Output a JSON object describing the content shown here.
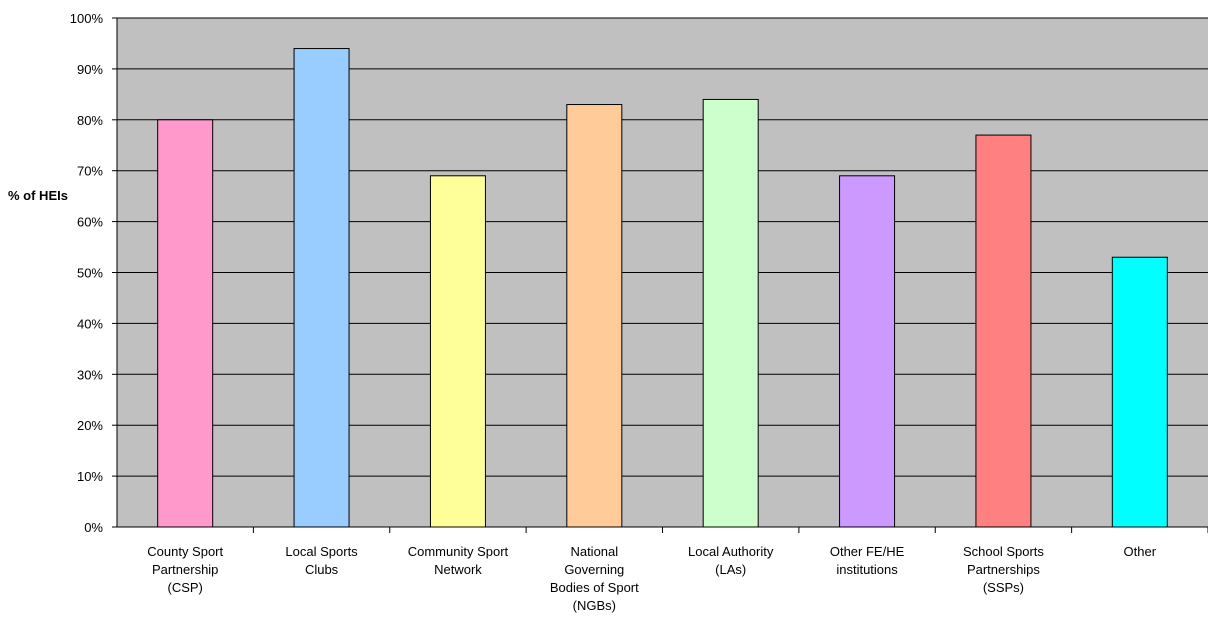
{
  "chart_data": {
    "type": "bar",
    "title": "",
    "xlabel": "",
    "ylabel": "% of HEIs",
    "ylim": [
      0,
      100
    ],
    "ytick_step": 10,
    "ytick_suffix": "%",
    "grid": true,
    "plot_background": "#c0c0c0",
    "categories": [
      [
        "County Sport",
        "Partnership",
        "(CSP)"
      ],
      [
        "Local Sports",
        "Clubs"
      ],
      [
        "Community Sport",
        "Network"
      ],
      [
        "National",
        "Governing",
        "Bodies of Sport",
        "(NGBs)"
      ],
      [
        "Local Authority",
        "(LAs)"
      ],
      [
        "Other FE/HE",
        "institutions"
      ],
      [
        "School Sports",
        "Partnerships",
        "(SSPs)"
      ],
      [
        "Other"
      ]
    ],
    "values": [
      80,
      94,
      69,
      83,
      84,
      69,
      77,
      53
    ],
    "colors": [
      "#ff99cc",
      "#99ccff",
      "#ffff99",
      "#ffcc99",
      "#ccffcc",
      "#cc99ff",
      "#ff8080",
      "#00ffff"
    ]
  }
}
